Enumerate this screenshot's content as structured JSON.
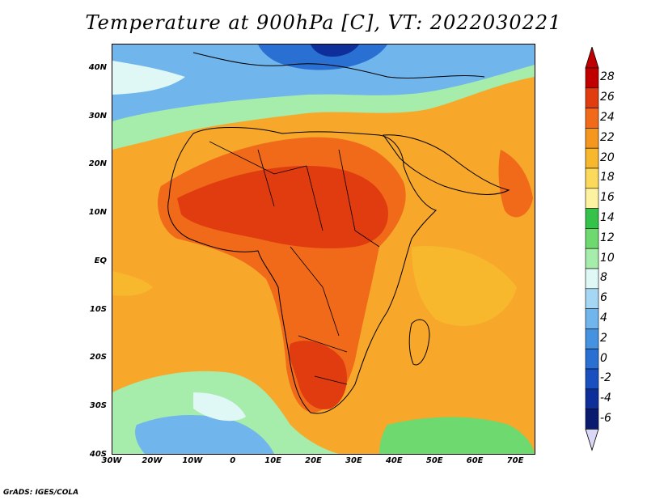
{
  "title": "Temperature at 900hPa [C], VT: 2022030221",
  "footer": "GrADS: IGES/COLA",
  "map": {
    "lon_range": [
      -30,
      75
    ],
    "lat_range": [
      -40,
      45
    ],
    "lat_ticks": [
      {
        "value": 40,
        "label": "40N"
      },
      {
        "value": 30,
        "label": "30N"
      },
      {
        "value": 20,
        "label": "20N"
      },
      {
        "value": 10,
        "label": "10N"
      },
      {
        "value": 0,
        "label": "EQ"
      },
      {
        "value": -10,
        "label": "10S"
      },
      {
        "value": -20,
        "label": "20S"
      },
      {
        "value": -30,
        "label": "30S"
      },
      {
        "value": -40,
        "label": "40S"
      }
    ],
    "lon_ticks": [
      {
        "value": -30,
        "label": "30W"
      },
      {
        "value": -20,
        "label": "20W"
      },
      {
        "value": -10,
        "label": "10W"
      },
      {
        "value": 0,
        "label": "0"
      },
      {
        "value": 10,
        "label": "10E"
      },
      {
        "value": 20,
        "label": "20E"
      },
      {
        "value": 30,
        "label": "30E"
      },
      {
        "value": 40,
        "label": "40E"
      },
      {
        "value": 50,
        "label": "50E"
      },
      {
        "value": 60,
        "label": "60E"
      },
      {
        "value": 70,
        "label": "70E"
      }
    ]
  },
  "colorbar": {
    "levels": [
      {
        "label": "28",
        "color": "#c00000"
      },
      {
        "label": "26",
        "color": "#e03c10"
      },
      {
        "label": "24",
        "color": "#f06a1a"
      },
      {
        "label": "22",
        "color": "#f5961e"
      },
      {
        "label": "20",
        "color": "#f8b82e"
      },
      {
        "label": "18",
        "color": "#fbd95a"
      },
      {
        "label": "16",
        "color": "#fdf2a0"
      },
      {
        "label": "14",
        "color": "#34c24a"
      },
      {
        "label": "12",
        "color": "#6ed96e"
      },
      {
        "label": "10",
        "color": "#a6ecaa"
      },
      {
        "label": "8",
        "color": "#dff7f5"
      },
      {
        "label": "6",
        "color": "#a5d7f5"
      },
      {
        "label": "4",
        "color": "#70b5ec"
      },
      {
        "label": "2",
        "color": "#4593e0"
      },
      {
        "label": "0",
        "color": "#2a6fd2"
      },
      {
        "label": "-2",
        "color": "#1a4fbf"
      },
      {
        "label": "-4",
        "color": "#0e2e9a"
      },
      {
        "label": "-6",
        "color": "#0a1a6e"
      }
    ],
    "top_arrow_color": "#c00000",
    "bottom_arrow_color": "#dad7f7"
  }
}
